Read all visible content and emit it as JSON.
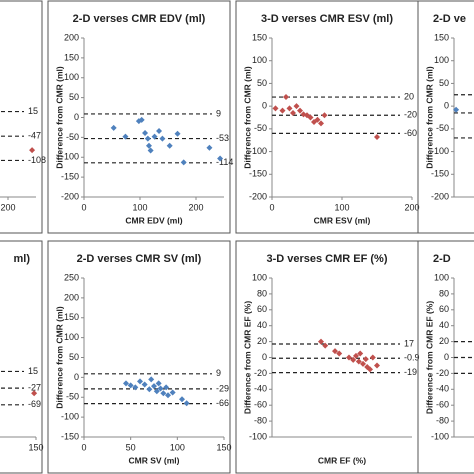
{
  "chart_data": [
    {
      "type": "scatter",
      "xlim": [
        0,
        250
      ],
      "ylim": [
        -200,
        200
      ],
      "xticks": [
        200
      ],
      "series": [
        {
          "color": "#c0504d",
          "x": [
            243
          ],
          "y": [
            -82
          ]
        }
      ],
      "lines": [
        15,
        -47,
        -108
      ],
      "line_labels": true
    },
    {
      "type": "scatter",
      "title": "2-D verses CMR EDV (ml)",
      "xlabel": "CMR EDV (ml)",
      "ylabel": "Difference from CMR (ml)",
      "xlim": [
        0,
        250
      ],
      "ylim": [
        -200,
        200
      ],
      "xticks": [
        0,
        100,
        200
      ],
      "yticks": [
        200,
        150,
        100,
        50,
        0,
        -50,
        -100,
        -150,
        -200
      ],
      "series": [
        {
          "color": "#4f81bd",
          "x": [
            53,
            74,
            98,
            103,
            109,
            114,
            116,
            119,
            126,
            134,
            140,
            153,
            167,
            178,
            224,
            243
          ],
          "y": [
            -26,
            -48,
            -9,
            -6,
            -39,
            -53,
            -71,
            -83,
            -48,
            -34,
            -53,
            -71,
            -41,
            -113,
            -76,
            -103
          ]
        }
      ],
      "lines": [
        9,
        -53,
        -114
      ],
      "line_labels": true
    },
    {
      "type": "scatter",
      "title": "3-D verses CMR ESV (ml)",
      "xlabel": "CMR ESV (ml)",
      "ylabel": "Difference from CMR (ml)",
      "xlim": [
        0,
        200
      ],
      "ylim": [
        -200,
        150
      ],
      "xticks": [
        0,
        100,
        200
      ],
      "yticks": [
        150,
        100,
        50,
        0,
        -50,
        -100,
        -150,
        -200
      ],
      "series": [
        {
          "color": "#c0504d",
          "x": [
            5,
            15,
            20,
            25,
            30,
            35,
            40,
            45,
            50,
            55,
            60,
            65,
            70,
            75,
            150
          ],
          "y": [
            -5,
            -10,
            20,
            -5,
            -15,
            0,
            -10,
            -18,
            -20,
            -25,
            -35,
            -30,
            -38,
            -20,
            -68
          ]
        }
      ],
      "lines": [
        20,
        -20,
        -60
      ],
      "line_labels": true
    },
    {
      "type": "scatter",
      "title": "2-D ve",
      "ylabel": "Difference from CMR (ml)",
      "xlim": [
        0,
        200
      ],
      "ylim": [
        -200,
        150
      ],
      "yticks": [
        150,
        100,
        50,
        0,
        -50,
        -100,
        -150,
        -200
      ],
      "series": [
        {
          "color": "#4f81bd",
          "x": [
            3,
            40
          ],
          "y": [
            -8,
            10
          ]
        }
      ],
      "lines": [
        25,
        -15,
        -70
      ],
      "line_labels": false
    },
    {
      "type": "scatter",
      "title": "ml)",
      "xlim": [
        0,
        150
      ],
      "ylim": [
        -150,
        250
      ],
      "xticks": [
        150
      ],
      "series": [
        {
          "color": "#c0504d",
          "x": [
            148
          ],
          "y": [
            -40
          ]
        }
      ],
      "lines": [
        15,
        -27,
        -69
      ],
      "line_labels": true
    },
    {
      "type": "scatter",
      "title": "2-D verses CMR SV (ml)",
      "xlabel": "CMR SV (ml)",
      "ylabel": "Difference from CMR (ml)",
      "xlim": [
        0,
        150
      ],
      "ylim": [
        -150,
        250
      ],
      "xticks": [
        0,
        50,
        100,
        150
      ],
      "yticks": [
        250,
        200,
        150,
        100,
        50,
        0,
        -50,
        -100,
        -150
      ],
      "series": [
        {
          "color": "#4f81bd",
          "x": [
            45,
            50,
            55,
            60,
            65,
            70,
            72,
            75,
            78,
            80,
            82,
            85,
            88,
            90,
            95,
            105,
            110
          ],
          "y": [
            -15,
            -20,
            -25,
            -10,
            -18,
            -30,
            -5,
            -22,
            -35,
            -15,
            -28,
            -40,
            -25,
            -45,
            -38,
            -55,
            -65
          ]
        }
      ],
      "lines": [
        9,
        -29,
        -66
      ],
      "line_labels": true
    },
    {
      "type": "scatter",
      "title": "3-D verses CMR EF (%)",
      "xlabel": "CMR EF (%)",
      "ylabel": "Difference from CMR EF (%)",
      "xlim": [
        0,
        100
      ],
      "ylim": [
        -100,
        100
      ],
      "yticks": [
        100,
        80,
        60,
        40,
        20,
        0,
        -20,
        -40,
        -60,
        -80,
        -100
      ],
      "series": [
        {
          "color": "#c0504d",
          "x": [
            35,
            38,
            45,
            48,
            55,
            58,
            60,
            62,
            63,
            65,
            67,
            68,
            70,
            72,
            75
          ],
          "y": [
            20,
            15,
            8,
            5,
            0,
            -3,
            2,
            -5,
            5,
            -8,
            -2,
            -12,
            -15,
            0,
            -10
          ]
        }
      ],
      "lines": [
        17,
        -0.9,
        -19
      ],
      "line_labels": true
    },
    {
      "type": "scatter",
      "title": "2-D",
      "ylabel": "Difference from CMR EF (%)",
      "xlim": [
        0,
        100
      ],
      "ylim": [
        -100,
        100
      ],
      "yticks": [
        100,
        80,
        60,
        40,
        20,
        0,
        -20,
        -40,
        -60,
        -80,
        -100
      ],
      "series": [
        {
          "color": "#4f81bd",
          "x": [],
          "y": []
        }
      ],
      "lines": [
        20,
        0,
        -20
      ],
      "line_labels": false
    }
  ]
}
